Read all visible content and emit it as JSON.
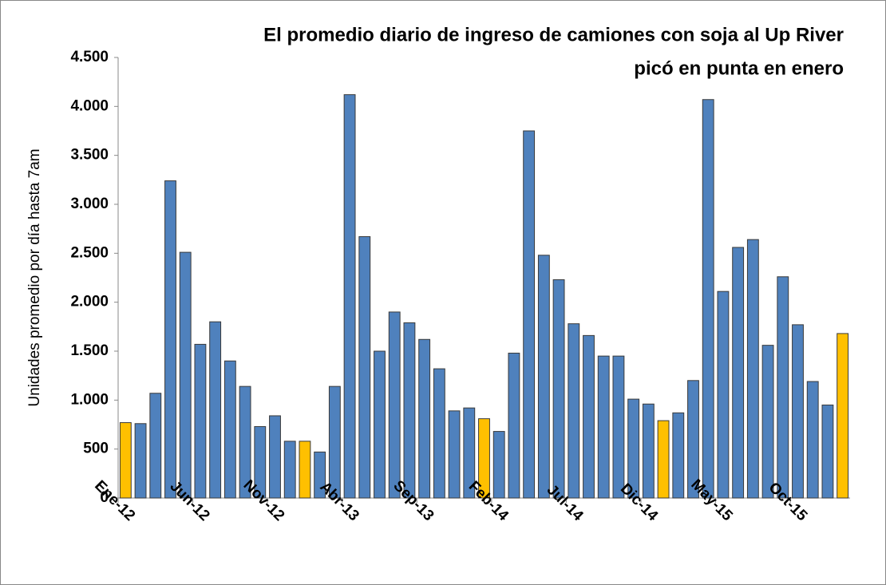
{
  "chart_data": {
    "type": "bar",
    "title": [
      "El promedio diario de ingreso de camiones con soja al Up River",
      "picó en punta en enero"
    ],
    "y_label": "Unidades promedio por día hasta 7am",
    "categories": [
      "Ene-12",
      null,
      null,
      null,
      null,
      "Jun-12",
      null,
      null,
      null,
      null,
      "Nov-12",
      null,
      null,
      null,
      null,
      "Abr-13",
      null,
      null,
      null,
      null,
      "Sep-13",
      null,
      null,
      null,
      null,
      "Feb-14",
      null,
      null,
      null,
      null,
      "Jul-14",
      null,
      null,
      null,
      null,
      "Dic-14",
      null,
      null,
      null,
      null,
      "May-15",
      null,
      null,
      null,
      null,
      "Oct-15",
      null,
      null,
      null
    ],
    "values": [
      770,
      760,
      1070,
      3240,
      2510,
      1570,
      1800,
      1400,
      1140,
      730,
      840,
      580,
      580,
      470,
      1140,
      4120,
      2670,
      1500,
      1900,
      1790,
      1620,
      1320,
      890,
      920,
      810,
      680,
      1480,
      3750,
      2480,
      2230,
      1780,
      1660,
      1450,
      1450,
      1010,
      960,
      790,
      870,
      1200,
      4070,
      2110,
      2560,
      2640,
      1560,
      2260,
      1770,
      1190,
      950,
      1680
    ],
    "colors": [
      "#ffc000",
      "#4f81bd",
      "#4f81bd",
      "#4f81bd",
      "#4f81bd",
      "#4f81bd",
      "#4f81bd",
      "#4f81bd",
      "#4f81bd",
      "#4f81bd",
      "#4f81bd",
      "#4f81bd",
      "#ffc000",
      "#4f81bd",
      "#4f81bd",
      "#4f81bd",
      "#4f81bd",
      "#4f81bd",
      "#4f81bd",
      "#4f81bd",
      "#4f81bd",
      "#4f81bd",
      "#4f81bd",
      "#4f81bd",
      "#ffc000",
      "#4f81bd",
      "#4f81bd",
      "#4f81bd",
      "#4f81bd",
      "#4f81bd",
      "#4f81bd",
      "#4f81bd",
      "#4f81bd",
      "#4f81bd",
      "#4f81bd",
      "#4f81bd",
      "#ffc000",
      "#4f81bd",
      "#4f81bd",
      "#4f81bd",
      "#4f81bd",
      "#4f81bd",
      "#4f81bd",
      "#4f81bd",
      "#4f81bd",
      "#4f81bd",
      "#4f81bd",
      "#4f81bd",
      "#ffc000"
    ],
    "ylim": [
      0,
      4500
    ],
    "yticks": [
      0,
      500,
      {
        "value": 1000,
        "label": "1.000"
      },
      {
        "value": 1500,
        "label": "1.500"
      },
      {
        "value": 2000,
        "label": "2.000"
      },
      {
        "value": 2500,
        "label": "2.500"
      },
      {
        "value": 3000,
        "label": "3.000"
      },
      {
        "value": 3500,
        "label": "3.500"
      },
      {
        "value": 4000,
        "label": "4.000"
      },
      {
        "value": 4500,
        "label": "4.500"
      }
    ],
    "grid": false
  }
}
